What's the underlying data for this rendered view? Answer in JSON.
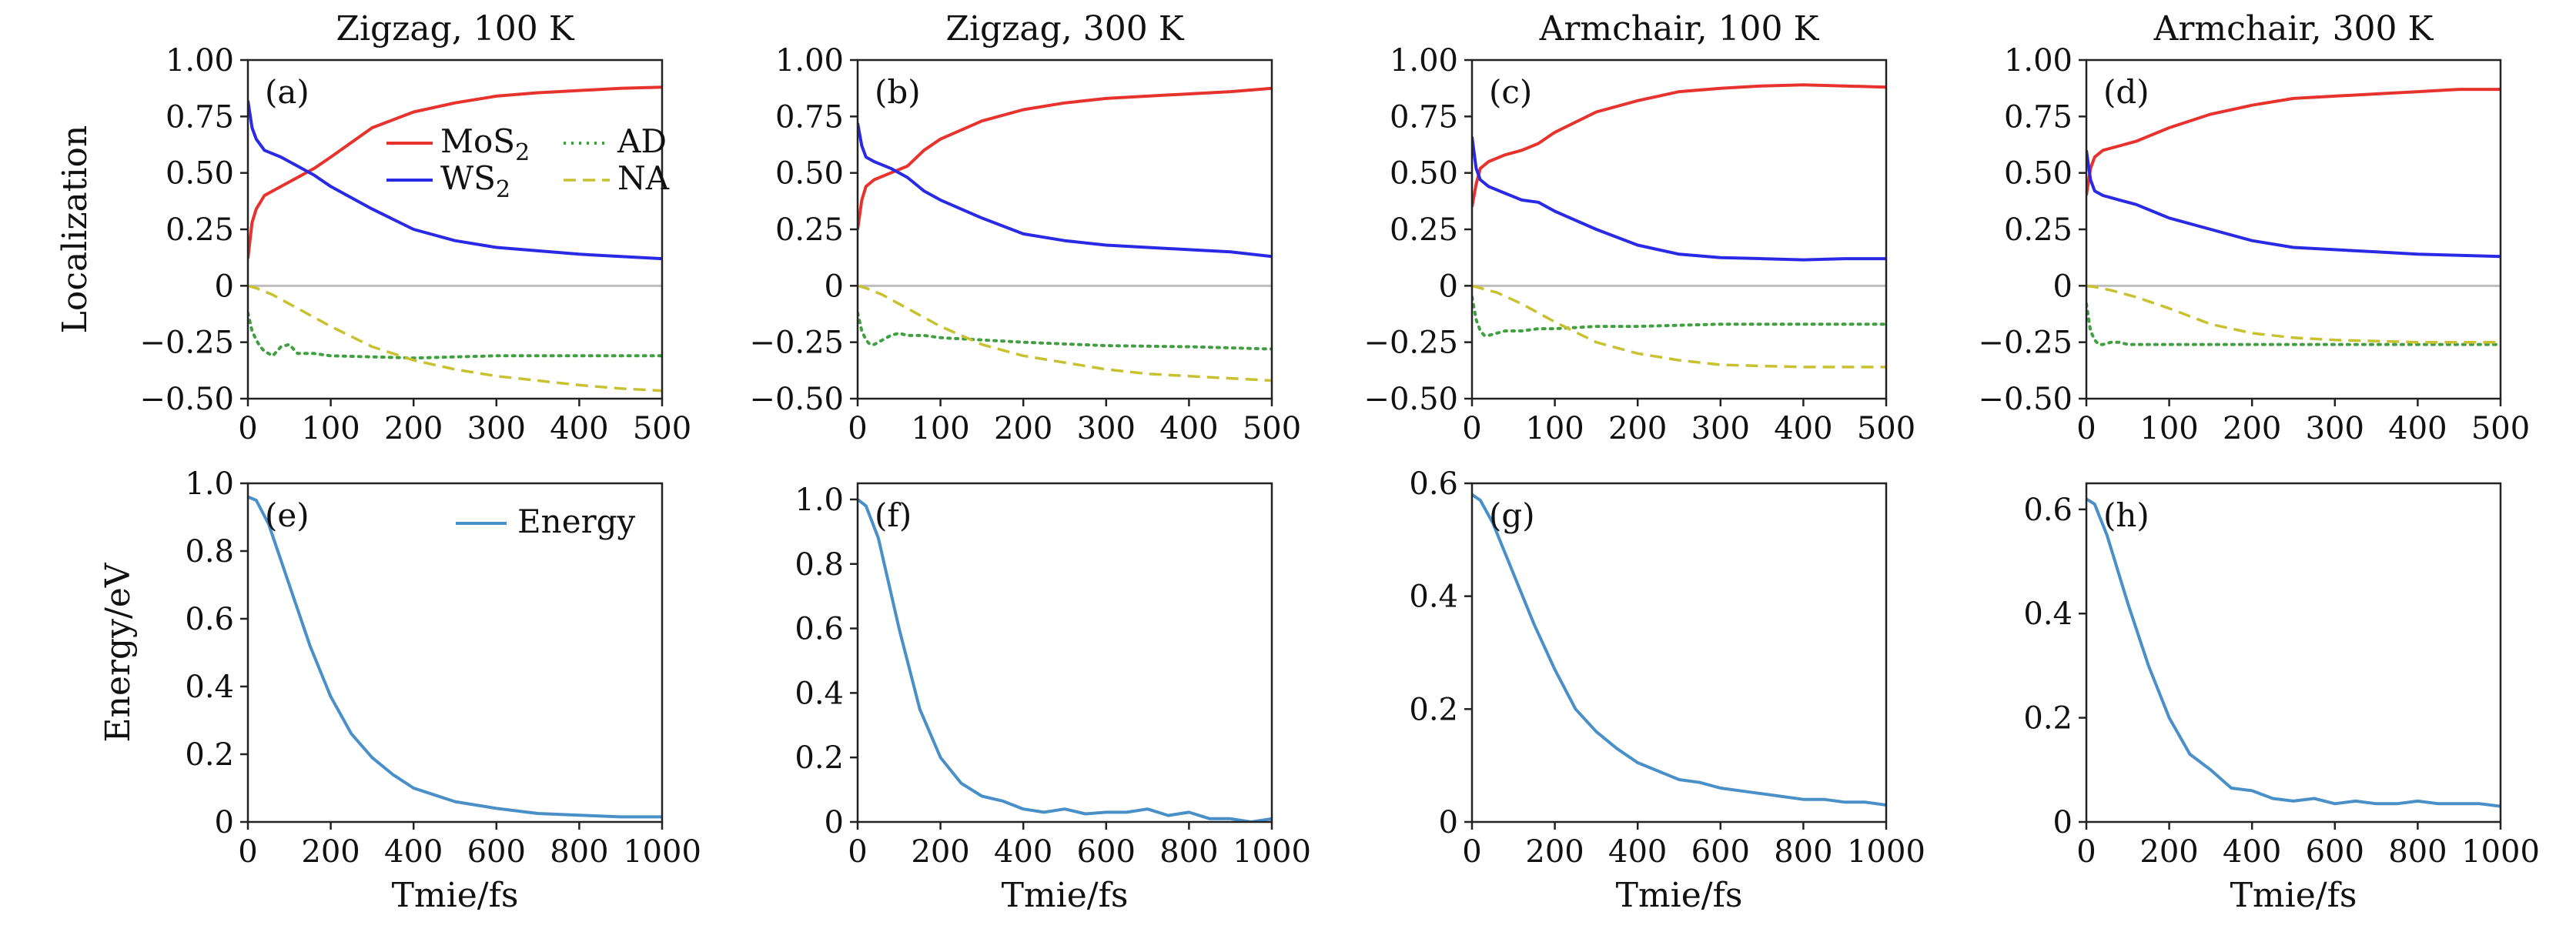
{
  "chart_data": [
    {
      "type": "line",
      "panel": "(a)",
      "title": "Zigzag, 100 K",
      "xlabel": "",
      "ylabel": "Localization",
      "xlim": [
        0,
        500
      ],
      "ylim": [
        -0.5,
        1.0
      ],
      "xticks": [
        "0",
        "100",
        "200",
        "300",
        "400",
        "500"
      ],
      "yticks": [
        "−0.50",
        "−0.25",
        "0",
        "0.25",
        "0.50",
        "0.75",
        "1.00"
      ],
      "legend_placement": "upper-center",
      "series": [
        {
          "name": "MoS2",
          "color": "#e8322d",
          "style": "solid",
          "x": [
            0,
            5,
            10,
            20,
            40,
            60,
            80,
            100,
            150,
            200,
            250,
            300,
            350,
            400,
            450,
            500
          ],
          "y": [
            0.12,
            0.28,
            0.34,
            0.4,
            0.44,
            0.48,
            0.52,
            0.57,
            0.7,
            0.77,
            0.81,
            0.84,
            0.855,
            0.865,
            0.875,
            0.88
          ]
        },
        {
          "name": "WS2",
          "color": "#2a2ae6",
          "style": "solid",
          "x": [
            0,
            5,
            10,
            20,
            40,
            60,
            80,
            100,
            150,
            200,
            250,
            300,
            350,
            400,
            450,
            500
          ],
          "y": [
            0.82,
            0.7,
            0.65,
            0.6,
            0.57,
            0.53,
            0.49,
            0.44,
            0.34,
            0.25,
            0.2,
            0.17,
            0.155,
            0.14,
            0.13,
            0.12
          ]
        },
        {
          "name": "AD",
          "color": "#3fa040",
          "style": "dotted",
          "x": [
            0,
            5,
            10,
            15,
            20,
            30,
            40,
            50,
            60,
            80,
            100,
            150,
            200,
            300,
            400,
            500
          ],
          "y": [
            -0.12,
            -0.2,
            -0.24,
            -0.27,
            -0.29,
            -0.31,
            -0.27,
            -0.26,
            -0.3,
            -0.3,
            -0.31,
            -0.315,
            -0.32,
            -0.31,
            -0.31,
            -0.31
          ]
        },
        {
          "name": "NA",
          "color": "#c8c230",
          "style": "dashed",
          "x": [
            0,
            10,
            30,
            60,
            100,
            150,
            200,
            250,
            300,
            350,
            400,
            450,
            500
          ],
          "y": [
            0.0,
            -0.01,
            -0.04,
            -0.1,
            -0.18,
            -0.27,
            -0.33,
            -0.37,
            -0.4,
            -0.42,
            -0.44,
            -0.455,
            -0.465
          ]
        }
      ]
    },
    {
      "type": "line",
      "panel": "(b)",
      "title": "Zigzag, 300 K",
      "xlabel": "",
      "ylabel": "",
      "xlim": [
        0,
        500
      ],
      "ylim": [
        -0.5,
        1.0
      ],
      "xticks": [
        "0",
        "100",
        "200",
        "300",
        "400",
        "500"
      ],
      "yticks": [
        "−0.50",
        "−0.25",
        "0",
        "0.25",
        "0.50",
        "0.75",
        "1.00"
      ],
      "series": [
        {
          "name": "MoS2",
          "color": "#e8322d",
          "style": "solid",
          "x": [
            0,
            5,
            10,
            20,
            40,
            60,
            80,
            100,
            150,
            200,
            250,
            300,
            350,
            400,
            450,
            500
          ],
          "y": [
            0.25,
            0.38,
            0.44,
            0.47,
            0.5,
            0.53,
            0.6,
            0.65,
            0.73,
            0.78,
            0.81,
            0.83,
            0.84,
            0.85,
            0.86,
            0.875
          ]
        },
        {
          "name": "WS2",
          "color": "#2a2ae6",
          "style": "solid",
          "x": [
            0,
            5,
            10,
            20,
            40,
            60,
            80,
            100,
            150,
            200,
            250,
            300,
            350,
            400,
            450,
            500
          ],
          "y": [
            0.72,
            0.62,
            0.57,
            0.55,
            0.52,
            0.48,
            0.42,
            0.38,
            0.3,
            0.23,
            0.2,
            0.18,
            0.17,
            0.16,
            0.15,
            0.13
          ]
        },
        {
          "name": "AD",
          "color": "#3fa040",
          "style": "dotted",
          "x": [
            0,
            5,
            10,
            15,
            20,
            30,
            40,
            50,
            60,
            80,
            100,
            150,
            200,
            300,
            400,
            500
          ],
          "y": [
            -0.12,
            -0.2,
            -0.24,
            -0.26,
            -0.26,
            -0.24,
            -0.22,
            -0.21,
            -0.22,
            -0.22,
            -0.23,
            -0.24,
            -0.25,
            -0.265,
            -0.27,
            -0.28
          ]
        },
        {
          "name": "NA",
          "color": "#c8c230",
          "style": "dashed",
          "x": [
            0,
            10,
            30,
            60,
            100,
            150,
            200,
            250,
            300,
            350,
            400,
            450,
            500
          ],
          "y": [
            0.0,
            -0.01,
            -0.04,
            -0.1,
            -0.18,
            -0.26,
            -0.31,
            -0.34,
            -0.37,
            -0.39,
            -0.4,
            -0.41,
            -0.42
          ]
        }
      ]
    },
    {
      "type": "line",
      "panel": "(c)",
      "title": "Armchair, 100 K",
      "xlabel": "",
      "ylabel": "",
      "xlim": [
        0,
        500
      ],
      "ylim": [
        -0.5,
        1.0
      ],
      "xticks": [
        "0",
        "100",
        "200",
        "300",
        "400",
        "500"
      ],
      "yticks": [
        "−0.50",
        "−0.25",
        "0",
        "0.25",
        "0.50",
        "0.75",
        "1.00"
      ],
      "series": [
        {
          "name": "MoS2",
          "color": "#e8322d",
          "style": "solid",
          "x": [
            0,
            5,
            10,
            20,
            40,
            60,
            80,
            100,
            150,
            200,
            250,
            300,
            350,
            400,
            450,
            500
          ],
          "y": [
            0.35,
            0.45,
            0.52,
            0.55,
            0.58,
            0.6,
            0.63,
            0.68,
            0.77,
            0.82,
            0.86,
            0.875,
            0.885,
            0.89,
            0.885,
            0.88
          ]
        },
        {
          "name": "WS2",
          "color": "#2a2ae6",
          "style": "solid",
          "x": [
            0,
            5,
            10,
            20,
            40,
            60,
            80,
            100,
            150,
            200,
            250,
            300,
            350,
            400,
            450,
            500
          ],
          "y": [
            0.66,
            0.52,
            0.47,
            0.44,
            0.41,
            0.38,
            0.37,
            0.33,
            0.25,
            0.18,
            0.14,
            0.125,
            0.12,
            0.115,
            0.12,
            0.12
          ]
        },
        {
          "name": "AD",
          "color": "#3fa040",
          "style": "dotted",
          "x": [
            0,
            5,
            10,
            15,
            20,
            30,
            40,
            50,
            60,
            80,
            100,
            150,
            200,
            300,
            400,
            500
          ],
          "y": [
            -0.05,
            -0.15,
            -0.2,
            -0.22,
            -0.22,
            -0.21,
            -0.2,
            -0.2,
            -0.2,
            -0.19,
            -0.19,
            -0.18,
            -0.18,
            -0.17,
            -0.17,
            -0.17
          ]
        },
        {
          "name": "NA",
          "color": "#c8c230",
          "style": "dashed",
          "x": [
            0,
            10,
            30,
            60,
            100,
            150,
            200,
            250,
            300,
            350,
            400,
            450,
            500
          ],
          "y": [
            0.0,
            -0.01,
            -0.03,
            -0.08,
            -0.16,
            -0.25,
            -0.3,
            -0.33,
            -0.35,
            -0.355,
            -0.36,
            -0.36,
            -0.36
          ]
        }
      ]
    },
    {
      "type": "line",
      "panel": "(d)",
      "title": "Armchair, 300 K",
      "xlabel": "",
      "ylabel": "",
      "xlim": [
        0,
        500
      ],
      "ylim": [
        -0.5,
        1.0
      ],
      "xticks": [
        "0",
        "100",
        "200",
        "300",
        "400",
        "500"
      ],
      "yticks": [
        "−0.50",
        "−0.25",
        "0",
        "0.25",
        "0.50",
        "0.75",
        "1.00"
      ],
      "series": [
        {
          "name": "MoS2",
          "color": "#e8322d",
          "style": "solid",
          "x": [
            0,
            5,
            10,
            20,
            40,
            60,
            80,
            100,
            150,
            200,
            250,
            300,
            350,
            400,
            450,
            500
          ],
          "y": [
            0.4,
            0.52,
            0.57,
            0.6,
            0.62,
            0.64,
            0.67,
            0.7,
            0.76,
            0.8,
            0.83,
            0.84,
            0.85,
            0.86,
            0.87,
            0.87
          ]
        },
        {
          "name": "WS2",
          "color": "#2a2ae6",
          "style": "solid",
          "x": [
            0,
            5,
            10,
            20,
            40,
            60,
            80,
            100,
            150,
            200,
            250,
            300,
            350,
            400,
            450,
            500
          ],
          "y": [
            0.6,
            0.47,
            0.42,
            0.4,
            0.38,
            0.36,
            0.33,
            0.3,
            0.25,
            0.2,
            0.17,
            0.16,
            0.15,
            0.14,
            0.135,
            0.13
          ]
        },
        {
          "name": "AD",
          "color": "#3fa040",
          "style": "dotted",
          "x": [
            0,
            5,
            10,
            15,
            20,
            30,
            40,
            50,
            60,
            80,
            100,
            150,
            200,
            300,
            400,
            500
          ],
          "y": [
            -0.08,
            -0.2,
            -0.24,
            -0.26,
            -0.26,
            -0.25,
            -0.25,
            -0.26,
            -0.26,
            -0.26,
            -0.26,
            -0.26,
            -0.26,
            -0.26,
            -0.26,
            -0.26
          ]
        },
        {
          "name": "NA",
          "color": "#c8c230",
          "style": "dashed",
          "x": [
            0,
            10,
            30,
            60,
            100,
            150,
            200,
            250,
            300,
            350,
            400,
            450,
            500
          ],
          "y": [
            0.0,
            -0.005,
            -0.02,
            -0.05,
            -0.1,
            -0.17,
            -0.21,
            -0.23,
            -0.24,
            -0.245,
            -0.25,
            -0.25,
            -0.25
          ]
        }
      ]
    },
    {
      "type": "line",
      "panel": "(e)",
      "title": "",
      "xlabel": "Tmie/fs",
      "ylabel": "Energy/eV",
      "xlim": [
        0,
        1000
      ],
      "ylim": [
        0,
        1.0
      ],
      "xticks": [
        "0",
        "200",
        "400",
        "600",
        "800",
        "1000"
      ],
      "yticks": [
        "0",
        "0.2",
        "0.4",
        "0.6",
        "0.8",
        "1.0"
      ],
      "legend_placement": "upper-right",
      "series": [
        {
          "name": "Energy",
          "color": "#4a90c8",
          "style": "solid",
          "x": [
            0,
            20,
            50,
            100,
            150,
            200,
            250,
            300,
            350,
            400,
            450,
            500,
            600,
            700,
            800,
            900,
            1000
          ],
          "y": [
            0.96,
            0.95,
            0.88,
            0.7,
            0.52,
            0.37,
            0.26,
            0.19,
            0.14,
            0.1,
            0.08,
            0.06,
            0.04,
            0.025,
            0.02,
            0.015,
            0.015
          ]
        }
      ]
    },
    {
      "type": "line",
      "panel": "(f)",
      "title": "",
      "xlabel": "Tmie/fs",
      "ylabel": "",
      "xlim": [
        0,
        1000
      ],
      "ylim": [
        0,
        1.05
      ],
      "xticks": [
        "0",
        "200",
        "400",
        "600",
        "800",
        "1000"
      ],
      "yticks": [
        "0",
        "0.2",
        "0.4",
        "0.6",
        "0.8",
        "1.0"
      ],
      "series": [
        {
          "name": "Energy",
          "color": "#4a90c8",
          "style": "solid",
          "x": [
            0,
            20,
            50,
            100,
            150,
            200,
            250,
            300,
            350,
            400,
            450,
            500,
            550,
            600,
            650,
            700,
            750,
            800,
            850,
            900,
            950,
            1000
          ],
          "y": [
            1.0,
            0.98,
            0.88,
            0.6,
            0.35,
            0.2,
            0.12,
            0.08,
            0.065,
            0.04,
            0.03,
            0.04,
            0.025,
            0.03,
            0.03,
            0.04,
            0.02,
            0.03,
            0.01,
            0.01,
            0.0,
            0.01
          ]
        }
      ]
    },
    {
      "type": "line",
      "panel": "(g)",
      "title": "",
      "xlabel": "Tmie/fs",
      "ylabel": "",
      "xlim": [
        0,
        1000
      ],
      "ylim": [
        0,
        0.6
      ],
      "xticks": [
        "0",
        "200",
        "400",
        "600",
        "800",
        "1000"
      ],
      "yticks": [
        "0",
        "0.2",
        "0.4",
        "0.6"
      ],
      "series": [
        {
          "name": "Energy",
          "color": "#4a90c8",
          "style": "solid",
          "x": [
            0,
            20,
            50,
            100,
            150,
            200,
            250,
            300,
            350,
            400,
            450,
            500,
            550,
            600,
            650,
            700,
            750,
            800,
            850,
            900,
            950,
            1000
          ],
          "y": [
            0.58,
            0.57,
            0.53,
            0.44,
            0.35,
            0.27,
            0.2,
            0.16,
            0.13,
            0.105,
            0.09,
            0.075,
            0.07,
            0.06,
            0.055,
            0.05,
            0.045,
            0.04,
            0.04,
            0.035,
            0.035,
            0.03
          ]
        }
      ]
    },
    {
      "type": "line",
      "panel": "(h)",
      "title": "",
      "xlabel": "Tmie/fs",
      "ylabel": "",
      "xlim": [
        0,
        1000
      ],
      "ylim": [
        0,
        0.65
      ],
      "xticks": [
        "0",
        "200",
        "400",
        "600",
        "800",
        "1000"
      ],
      "yticks": [
        "0",
        "0.2",
        "0.4",
        "0.6"
      ],
      "series": [
        {
          "name": "Energy",
          "color": "#4a90c8",
          "style": "solid",
          "x": [
            0,
            20,
            50,
            100,
            150,
            200,
            250,
            300,
            350,
            400,
            450,
            500,
            550,
            600,
            650,
            700,
            750,
            800,
            850,
            900,
            950,
            1000
          ],
          "y": [
            0.62,
            0.61,
            0.55,
            0.42,
            0.3,
            0.2,
            0.13,
            0.1,
            0.065,
            0.06,
            0.045,
            0.04,
            0.045,
            0.035,
            0.04,
            0.035,
            0.035,
            0.04,
            0.035,
            0.035,
            0.035,
            0.03
          ]
        }
      ]
    }
  ]
}
